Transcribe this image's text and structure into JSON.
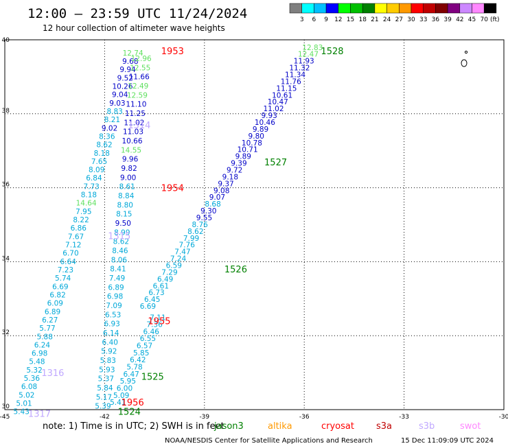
{
  "header": {
    "title": "12:00 – 23:59 UTC 11/24/2024",
    "subtitle": "12 hour collection of altimeter wave heights"
  },
  "colorbar": {
    "colors": [
      "#7f7f7f",
      "#00ffff",
      "#00bfff",
      "#0000ff",
      "#00ff00",
      "#00c000",
      "#008000",
      "#ffff00",
      "#ffcc00",
      "#ff9900",
      "#ff0000",
      "#c00000",
      "#800000",
      "#800080",
      "#cc88ff",
      "#ff88ff",
      "#000000"
    ],
    "labels": [
      "3",
      "6",
      "9",
      "12",
      "15",
      "18",
      "21",
      "24",
      "27",
      "30",
      "33",
      "36",
      "39",
      "42",
      "45",
      "70"
    ],
    "unit": "(ft)"
  },
  "footer": {
    "note": "note:  1) Time is in UTC; 2) SWH is in feet",
    "credit": "NOAA/NESDIS Center for Satellite Applications and Research",
    "timestamp": "15 Dec 11:09:09 UTC 2024",
    "legend": [
      {
        "name": "jason3",
        "color": "#008000"
      },
      {
        "name": "altika",
        "color": "#ff9900"
      },
      {
        "name": "cryosat",
        "color": "#ff0000"
      },
      {
        "name": "s3a",
        "color": "#c00000"
      },
      {
        "name": "s3b",
        "color": "#c0a8ff"
      },
      {
        "name": "swot",
        "color": "#ff88ff"
      }
    ]
  },
  "chart_data": {
    "type": "scatter",
    "xlim": [
      -45,
      -30
    ],
    "ylim": [
      30,
      40
    ],
    "xticks": [
      -45,
      -42,
      -39,
      -36,
      -33,
      -30
    ],
    "yticks": [
      30,
      32,
      34,
      36,
      38,
      40
    ],
    "grid": true,
    "time_labels": [
      {
        "text": "1953",
        "x": -40.3,
        "y": 39.7,
        "color": "#ff0000"
      },
      {
        "text": "1528",
        "x": -35.5,
        "y": 39.7,
        "color": "#008000"
      },
      {
        "text": "1314",
        "x": -41.3,
        "y": 37.7,
        "color": "#c0a8ff"
      },
      {
        "text": "1527",
        "x": -37.2,
        "y": 36.7,
        "color": "#008000"
      },
      {
        "text": "1954",
        "x": -40.3,
        "y": 36.0,
        "color": "#ff0000"
      },
      {
        "text": "1315",
        "x": -41.9,
        "y": 34.7,
        "color": "#c0a8ff"
      },
      {
        "text": "1526",
        "x": -38.4,
        "y": 33.8,
        "color": "#008000"
      },
      {
        "text": "1955",
        "x": -40.7,
        "y": 32.4,
        "color": "#ff0000"
      },
      {
        "text": "1316",
        "x": -43.9,
        "y": 31.0,
        "color": "#c0a8ff"
      },
      {
        "text": "1525",
        "x": -40.9,
        "y": 30.9,
        "color": "#008000"
      },
      {
        "text": "1956",
        "x": -41.5,
        "y": 30.2,
        "color": "#ff0000"
      },
      {
        "text": "1317",
        "x": -44.3,
        "y": 29.9,
        "color": "#c0a8ff"
      },
      {
        "text": "1524",
        "x": -41.6,
        "y": 29.95,
        "color": "#008000"
      }
    ],
    "tracks": [
      {
        "x_start": -44.5,
        "y_start": 29.95,
        "x_end": -41.15,
        "y_end": 39.65,
        "values": [
          "5.43",
          "5.01",
          "5.02",
          "6.08",
          "5.36",
          "5.32",
          "5.48",
          "6.98",
          "6.24",
          "5.88",
          "5.77",
          "6.27",
          "6.89",
          "6.09",
          "6.82",
          "6.69",
          "5.74",
          "7.23",
          "6.64",
          "6.70",
          "7.12",
          "7.67",
          "6.86",
          "8.22",
          "7.95",
          "14.64",
          "8.18",
          "7.73",
          "6.84",
          "8.09",
          "7.65",
          "8.18",
          "8.62",
          "8.36",
          "9.02",
          "8.21",
          "8.83",
          "9.03",
          "9.04",
          "10.26",
          "9.52",
          "9.94",
          "9.68",
          "12.74"
        ]
      },
      {
        "x_start": -42.05,
        "y_start": 30.1,
        "x_end": -40.9,
        "y_end": 39.5,
        "values": [
          "5.39",
          "5.17",
          "5.84",
          "5.37",
          "5.93",
          "5.83",
          "5.92",
          "6.40",
          "6.14",
          "6.93",
          "6.53",
          "7.09",
          "6.98",
          "6.89",
          "7.49",
          "8.41",
          "8.06",
          "8.46",
          "8.62",
          "8.99",
          "9.50",
          "8.15",
          "8.80",
          "8.84",
          "8.61",
          "9.00",
          "9.82",
          "9.96",
          "14.55",
          "10.66",
          "11.03",
          "11.02",
          "11.25",
          "11.10",
          "12.59",
          "12.49",
          "11.66",
          "12.55",
          "12.96"
        ]
      },
      {
        "x_start": -41.6,
        "y_start": 30.2,
        "x_end": -40.4,
        "y_end": 32.5,
        "values": [
          "5.41",
          "5.09",
          "6.00",
          "5.95",
          "6.47",
          "5.78",
          "6.42",
          "5.85",
          "6.57",
          "6.55",
          "6.46",
          "7.36",
          "7.11"
        ]
      },
      {
        "x_start": -40.7,
        "y_start": 32.8,
        "x_end": -35.75,
        "y_end": 39.8,
        "values": [
          "6.69",
          "6.45",
          "6.73",
          "6.61",
          "6.49",
          "7.29",
          "6.59",
          "7.24",
          "7.47",
          "7.76",
          "7.99",
          "8.62",
          "8.76",
          "9.55",
          "9.30",
          "8.68",
          "9.07",
          "9.08",
          "9.37",
          "9.18",
          "9.72",
          "9.39",
          "9.89",
          "10.71",
          "10.78",
          "9.80",
          "9.89",
          "10.46",
          "9.93",
          "11.02",
          "10.47",
          "10.61",
          "11.15",
          "11.76",
          "11.34",
          "11.32",
          "11.93",
          "12.47",
          "12.83"
        ]
      }
    ]
  }
}
